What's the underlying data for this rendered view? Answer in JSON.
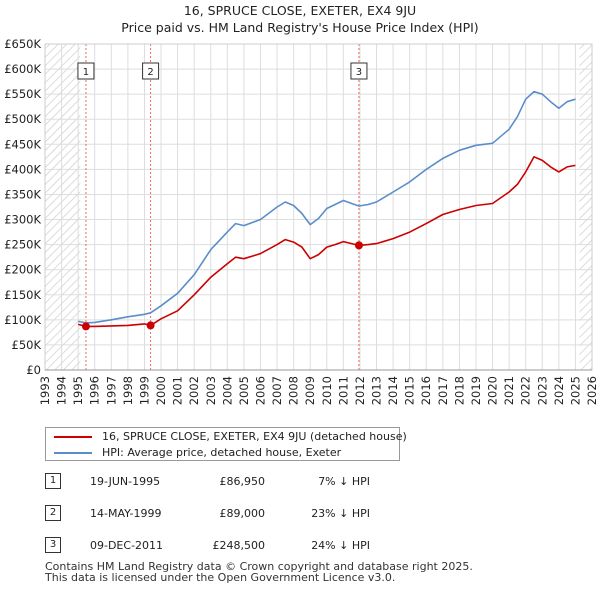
{
  "title": {
    "line1": "16, SPRUCE CLOSE, EXETER, EX4 9JU",
    "line2": "Price paid vs. HM Land Registry's House Price Index (HPI)"
  },
  "colors": {
    "property": "#cc0000",
    "hpi": "#5b8ec8",
    "hatch": "#cccccc",
    "grid": "#dddddd",
    "marker_line": "#ee6666"
  },
  "chart_data": {
    "type": "line",
    "title": "16, SPRUCE CLOSE, EXETER, EX4 9JU — Price paid vs. HM Land Registry's House Price Index (HPI)",
    "xlabel": "",
    "ylabel": "",
    "xlim": [
      1993,
      2026
    ],
    "ylim": [
      0,
      650000
    ],
    "grid": true,
    "legend_position": "below-left",
    "hatched_ranges": [
      [
        1993,
        1995.13
      ],
      [
        2025.25,
        2026
      ]
    ],
    "x_ticks": [
      "1993",
      "1994",
      "1995",
      "1996",
      "1997",
      "1998",
      "1999",
      "2000",
      "2001",
      "2002",
      "2003",
      "2004",
      "2005",
      "2006",
      "2007",
      "2008",
      "2009",
      "2010",
      "2011",
      "2012",
      "2013",
      "2014",
      "2015",
      "2016",
      "2017",
      "2018",
      "2019",
      "2020",
      "2021",
      "2022",
      "2023",
      "2024",
      "2025",
      "2026"
    ],
    "y_ticks": [
      {
        "value": 0,
        "label": "£0"
      },
      {
        "value": 50000,
        "label": "£50K"
      },
      {
        "value": 100000,
        "label": "£100K"
      },
      {
        "value": 150000,
        "label": "£150K"
      },
      {
        "value": 200000,
        "label": "£200K"
      },
      {
        "value": 250000,
        "label": "£250K"
      },
      {
        "value": 300000,
        "label": "£300K"
      },
      {
        "value": 350000,
        "label": "£350K"
      },
      {
        "value": 400000,
        "label": "£400K"
      },
      {
        "value": 450000,
        "label": "£450K"
      },
      {
        "value": 500000,
        "label": "£500K"
      },
      {
        "value": 550000,
        "label": "£550K"
      },
      {
        "value": 600000,
        "label": "£600K"
      },
      {
        "value": 650000,
        "label": "£650K"
      }
    ],
    "series": [
      {
        "name": "16, SPRUCE CLOSE, EXETER, EX4 9JU (detached house)",
        "color": "#cc0000",
        "points": [
          [
            1995.0,
            91000
          ],
          [
            1995.47,
            86950
          ],
          [
            1996.0,
            87000
          ],
          [
            1997.0,
            88000
          ],
          [
            1998.0,
            89000
          ],
          [
            1999.0,
            92000
          ],
          [
            1999.37,
            89000
          ],
          [
            2000.0,
            102000
          ],
          [
            2001.0,
            118000
          ],
          [
            2002.0,
            150000
          ],
          [
            2003.0,
            185000
          ],
          [
            2004.0,
            212000
          ],
          [
            2004.5,
            225000
          ],
          [
            2005.0,
            222000
          ],
          [
            2006.0,
            232000
          ],
          [
            2007.0,
            250000
          ],
          [
            2007.5,
            260000
          ],
          [
            2008.0,
            255000
          ],
          [
            2008.5,
            245000
          ],
          [
            2009.0,
            222000
          ],
          [
            2009.5,
            230000
          ],
          [
            2010.0,
            245000
          ],
          [
            2010.5,
            250000
          ],
          [
            2011.0,
            256000
          ],
          [
            2011.5,
            252000
          ],
          [
            2011.94,
            248500
          ],
          [
            2012.5,
            250000
          ],
          [
            2013.0,
            252000
          ],
          [
            2014.0,
            262000
          ],
          [
            2015.0,
            275000
          ],
          [
            2016.0,
            292000
          ],
          [
            2017.0,
            310000
          ],
          [
            2018.0,
            320000
          ],
          [
            2019.0,
            328000
          ],
          [
            2020.0,
            332000
          ],
          [
            2021.0,
            355000
          ],
          [
            2021.5,
            370000
          ],
          [
            2022.0,
            395000
          ],
          [
            2022.5,
            425000
          ],
          [
            2023.0,
            418000
          ],
          [
            2023.5,
            405000
          ],
          [
            2024.0,
            395000
          ],
          [
            2024.5,
            405000
          ],
          [
            2025.0,
            408000
          ]
        ]
      },
      {
        "name": "HPI: Average price, detached house, Exeter",
        "color": "#5b8ec8",
        "points": [
          [
            1995.0,
            97000
          ],
          [
            1995.47,
            94000
          ],
          [
            1996.0,
            95000
          ],
          [
            1997.0,
            100000
          ],
          [
            1998.0,
            106000
          ],
          [
            1999.0,
            111000
          ],
          [
            1999.37,
            114000
          ],
          [
            2000.0,
            128000
          ],
          [
            2001.0,
            153000
          ],
          [
            2002.0,
            190000
          ],
          [
            2003.0,
            240000
          ],
          [
            2004.0,
            275000
          ],
          [
            2004.5,
            292000
          ],
          [
            2005.0,
            288000
          ],
          [
            2006.0,
            300000
          ],
          [
            2007.0,
            325000
          ],
          [
            2007.5,
            335000
          ],
          [
            2008.0,
            328000
          ],
          [
            2008.5,
            312000
          ],
          [
            2009.0,
            290000
          ],
          [
            2009.5,
            302000
          ],
          [
            2010.0,
            322000
          ],
          [
            2010.5,
            330000
          ],
          [
            2011.0,
            338000
          ],
          [
            2011.5,
            332000
          ],
          [
            2011.94,
            327000
          ],
          [
            2012.5,
            330000
          ],
          [
            2013.0,
            335000
          ],
          [
            2014.0,
            355000
          ],
          [
            2015.0,
            375000
          ],
          [
            2016.0,
            400000
          ],
          [
            2017.0,
            422000
          ],
          [
            2018.0,
            438000
          ],
          [
            2019.0,
            448000
          ],
          [
            2020.0,
            452000
          ],
          [
            2021.0,
            480000
          ],
          [
            2021.5,
            505000
          ],
          [
            2022.0,
            540000
          ],
          [
            2022.5,
            555000
          ],
          [
            2023.0,
            550000
          ],
          [
            2023.5,
            535000
          ],
          [
            2024.0,
            522000
          ],
          [
            2024.5,
            535000
          ],
          [
            2025.0,
            540000
          ]
        ]
      }
    ],
    "sale_markers": [
      {
        "label": "1",
        "x": 1995.47,
        "value": 86950
      },
      {
        "label": "2",
        "x": 1999.37,
        "value": 89000
      },
      {
        "label": "3",
        "x": 2011.94,
        "value": 248500
      }
    ]
  },
  "legend": {
    "property_label": "16, SPRUCE CLOSE, EXETER, EX4 9JU (detached house)",
    "hpi_label": "HPI: Average price, detached house, Exeter"
  },
  "sales": [
    {
      "num": "1",
      "date": "19-JUN-1995",
      "price": "£86,950",
      "hpi": "7% ↓ HPI"
    },
    {
      "num": "2",
      "date": "14-MAY-1999",
      "price": "£89,000",
      "hpi": "23% ↓ HPI"
    },
    {
      "num": "3",
      "date": "09-DEC-2011",
      "price": "£248,500",
      "hpi": "24% ↓ HPI"
    }
  ],
  "footer": {
    "line1": "Contains HM Land Registry data © Crown copyright and database right 2025.",
    "line2": "This data is licensed under the Open Government Licence v3.0."
  }
}
